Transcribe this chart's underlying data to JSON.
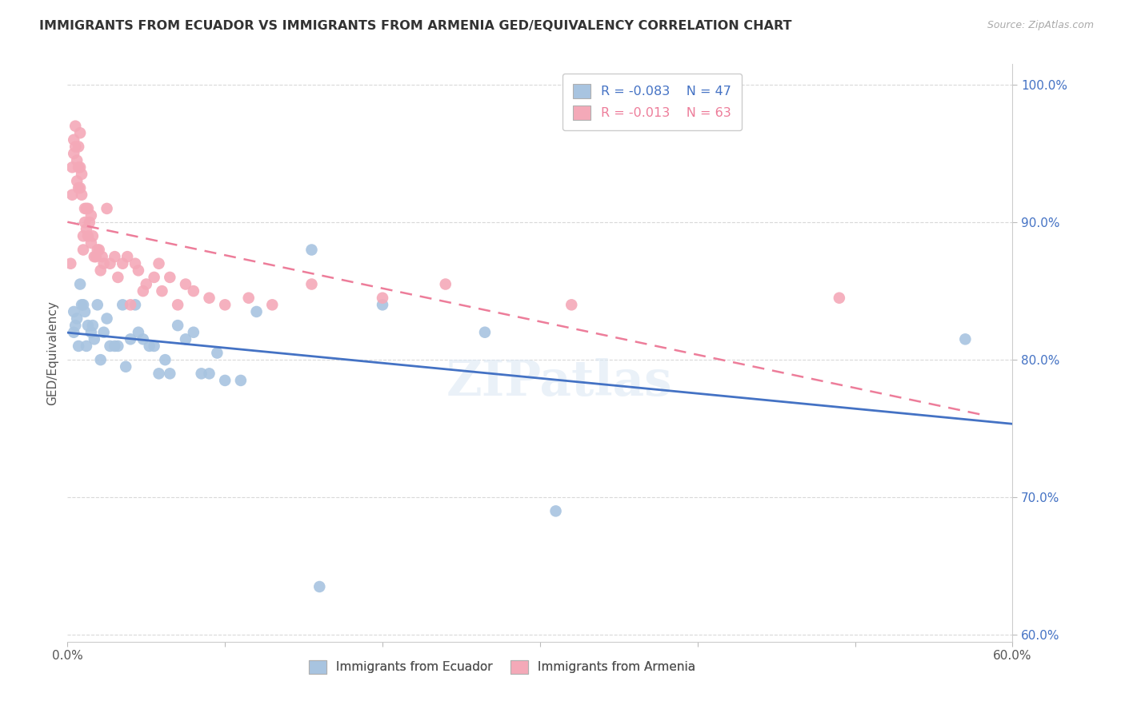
{
  "title": "IMMIGRANTS FROM ECUADOR VS IMMIGRANTS FROM ARMENIA GED/EQUIVALENCY CORRELATION CHART",
  "source": "Source: ZipAtlas.com",
  "ylabel": "GED/Equivalency",
  "xlim": [
    0.0,
    0.6
  ],
  "ylim": [
    0.595,
    1.015
  ],
  "yticks": [
    0.6,
    0.7,
    0.8,
    0.9,
    1.0
  ],
  "ytick_labels": [
    "60.0%",
    "70.0%",
    "80.0%",
    "90.0%",
    "100.0%"
  ],
  "xticks": [
    0.0,
    0.1,
    0.2,
    0.3,
    0.4,
    0.5,
    0.6
  ],
  "xtick_labels": [
    "0.0%",
    "",
    "",
    "",
    "",
    "",
    "60.0%"
  ],
  "ecuador_color": "#a8c4e0",
  "armenia_color": "#f4a9b8",
  "ecuador_R": -0.083,
  "ecuador_N": 47,
  "armenia_R": -0.013,
  "armenia_N": 63,
  "ecuador_line_color": "#4472c4",
  "armenia_line_color": "#ed7d9a",
  "watermark": "ZIPatlas",
  "background_color": "#ffffff",
  "grid_color": "#d9d9d9",
  "ecuador_x": [
    0.004,
    0.004,
    0.005,
    0.006,
    0.007,
    0.008,
    0.009,
    0.01,
    0.011,
    0.012,
    0.013,
    0.015,
    0.016,
    0.017,
    0.019,
    0.021,
    0.023,
    0.025,
    0.027,
    0.03,
    0.032,
    0.035,
    0.037,
    0.04,
    0.043,
    0.045,
    0.048,
    0.052,
    0.055,
    0.058,
    0.062,
    0.065,
    0.07,
    0.075,
    0.08,
    0.085,
    0.09,
    0.095,
    0.1,
    0.11,
    0.12,
    0.155,
    0.2,
    0.265,
    0.31,
    0.57,
    0.16
  ],
  "ecuador_y": [
    0.835,
    0.82,
    0.825,
    0.83,
    0.81,
    0.855,
    0.84,
    0.84,
    0.835,
    0.81,
    0.825,
    0.82,
    0.825,
    0.815,
    0.84,
    0.8,
    0.82,
    0.83,
    0.81,
    0.81,
    0.81,
    0.84,
    0.795,
    0.815,
    0.84,
    0.82,
    0.815,
    0.81,
    0.81,
    0.79,
    0.8,
    0.79,
    0.825,
    0.815,
    0.82,
    0.79,
    0.79,
    0.805,
    0.785,
    0.785,
    0.835,
    0.88,
    0.84,
    0.82,
    0.69,
    0.815,
    0.635
  ],
  "armenia_x": [
    0.002,
    0.003,
    0.003,
    0.004,
    0.004,
    0.005,
    0.005,
    0.006,
    0.006,
    0.007,
    0.007,
    0.007,
    0.008,
    0.008,
    0.008,
    0.009,
    0.009,
    0.01,
    0.01,
    0.011,
    0.011,
    0.012,
    0.012,
    0.013,
    0.013,
    0.014,
    0.015,
    0.015,
    0.016,
    0.017,
    0.018,
    0.019,
    0.02,
    0.021,
    0.022,
    0.023,
    0.025,
    0.027,
    0.03,
    0.032,
    0.035,
    0.038,
    0.04,
    0.043,
    0.045,
    0.048,
    0.05,
    0.055,
    0.058,
    0.06,
    0.065,
    0.07,
    0.075,
    0.08,
    0.09,
    0.1,
    0.115,
    0.13,
    0.155,
    0.2,
    0.24,
    0.32,
    0.49
  ],
  "armenia_y": [
    0.87,
    0.94,
    0.92,
    0.96,
    0.95,
    0.97,
    0.955,
    0.945,
    0.93,
    0.94,
    0.925,
    0.955,
    0.965,
    0.94,
    0.925,
    0.935,
    0.92,
    0.89,
    0.88,
    0.91,
    0.9,
    0.91,
    0.895,
    0.91,
    0.89,
    0.9,
    0.905,
    0.885,
    0.89,
    0.875,
    0.875,
    0.88,
    0.88,
    0.865,
    0.875,
    0.87,
    0.91,
    0.87,
    0.875,
    0.86,
    0.87,
    0.875,
    0.84,
    0.87,
    0.865,
    0.85,
    0.855,
    0.86,
    0.87,
    0.85,
    0.86,
    0.84,
    0.855,
    0.85,
    0.845,
    0.84,
    0.845,
    0.84,
    0.855,
    0.845,
    0.855,
    0.84,
    0.845
  ]
}
